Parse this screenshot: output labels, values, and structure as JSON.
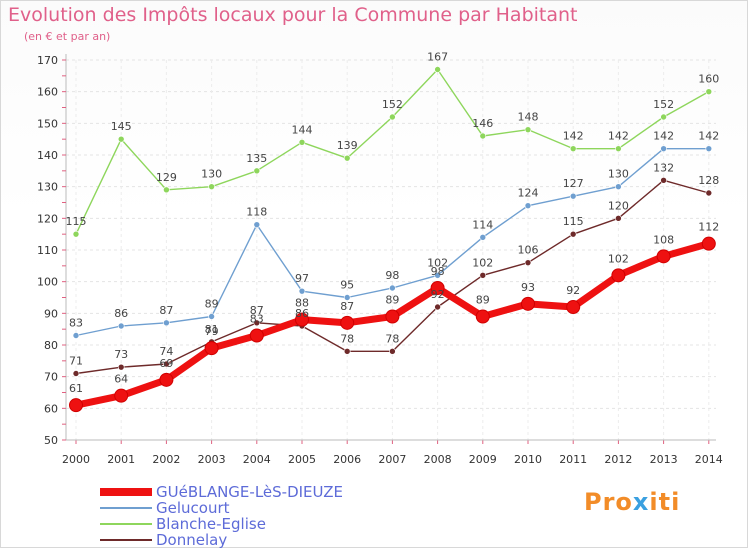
{
  "chart_data": {
    "type": "line",
    "title": "Evolution des Impôts locaux pour la Commune par Habitant",
    "subtitle": "(en € et par an)",
    "categories": [
      "2000",
      "2001",
      "2002",
      "2003",
      "2004",
      "2005",
      "2006",
      "2007",
      "2008",
      "2009",
      "2010",
      "2011",
      "2012",
      "2013",
      "2014"
    ],
    "ylim": [
      50,
      170
    ],
    "yticks": [
      50,
      60,
      70,
      80,
      90,
      100,
      110,
      120,
      130,
      140,
      150,
      160,
      170
    ],
    "grid": true,
    "series": [
      {
        "name": "Blanche-Eglise",
        "color": "#8ed65c",
        "values": [
          115,
          145,
          129,
          130,
          135,
          144,
          139,
          152,
          167,
          146,
          148,
          142,
          142,
          152,
          160
        ]
      },
      {
        "name": "Gelucourt",
        "color": "#6f9fd0",
        "values": [
          83,
          86,
          87,
          89,
          118,
          97,
          95,
          98,
          102,
          114,
          124,
          127,
          130,
          142,
          142
        ]
      },
      {
        "name": "Donnelay",
        "color": "#6e2a2a",
        "values": [
          71,
          73,
          74,
          81,
          87,
          86,
          78,
          78,
          92,
          102,
          106,
          115,
          120,
          132,
          128
        ]
      },
      {
        "name": "GUéBLANGE-LèS-DIEUZE",
        "color": "#ee1111",
        "values": [
          61,
          64,
          69,
          79,
          83,
          88,
          87,
          89,
          98,
          89,
          93,
          92,
          102,
          108,
          112
        ]
      }
    ]
  },
  "legend": [
    {
      "name": "GUéBLANGE-LèS-DIEUZE",
      "color": "#ee1111"
    },
    {
      "name": "Gelucourt",
      "color": "#6f9fd0"
    },
    {
      "name": "Blanche-Eglise",
      "color": "#8ed65c"
    },
    {
      "name": "Donnelay",
      "color": "#6e2a2a"
    }
  ],
  "logo": {
    "parts": [
      "Pro",
      "x",
      "iti"
    ],
    "colors": [
      "#f28c28",
      "#3aa0e0",
      "#f28c28"
    ]
  }
}
